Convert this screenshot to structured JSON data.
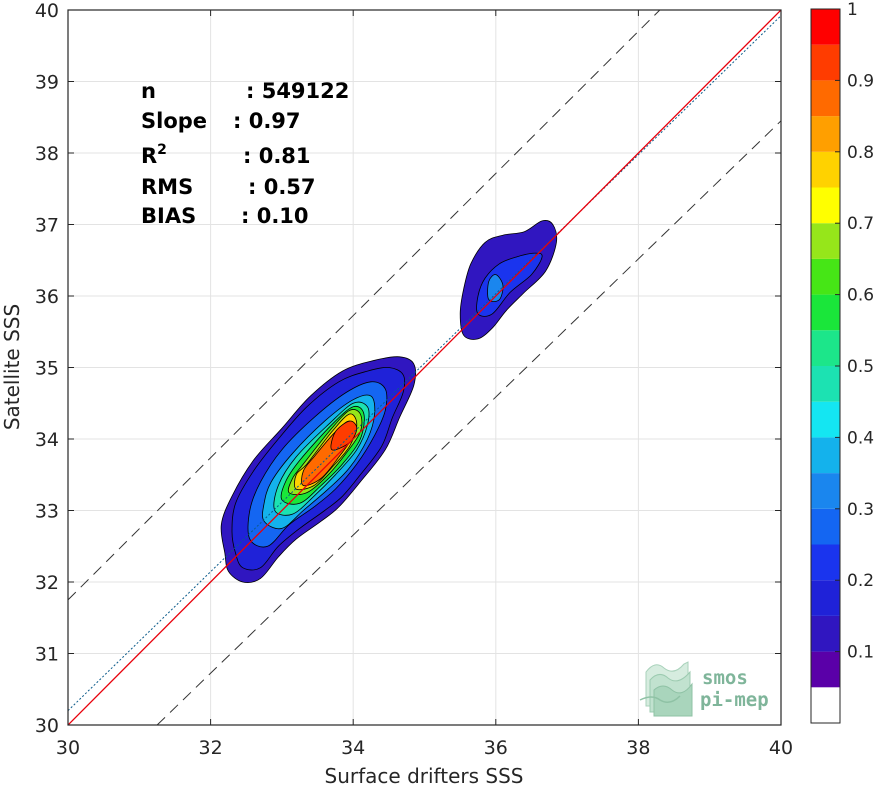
{
  "chart_data": {
    "type": "contour",
    "xlabel": "Surface drifters SSS",
    "ylabel": "Satellite SSS",
    "xlim": [
      30,
      40
    ],
    "ylim": [
      30,
      40
    ],
    "x_ticks": [
      30,
      32,
      34,
      36,
      38,
      40
    ],
    "y_ticks": [
      30,
      31,
      32,
      33,
      34,
      35,
      36,
      37,
      38,
      39,
      40
    ],
    "grid": true,
    "stats": [
      {
        "label": "n",
        "value": ": 549122"
      },
      {
        "label": "Slope",
        "value": ": 0.97"
      },
      {
        "label": "R",
        "sup": "2",
        "value": ": 0.81"
      },
      {
        "label": "RMS",
        "value": ": 0.57"
      },
      {
        "label": "BIAS",
        "value": ": 0.10"
      }
    ],
    "lines": {
      "identity": {
        "from": [
          30,
          30
        ],
        "to": [
          40,
          40
        ],
        "color": "#e8000b"
      },
      "regression": {
        "from": [
          30,
          30.2
        ],
        "to": [
          40,
          39.92
        ],
        "color": "#0a5a8a"
      },
      "upper_bound": {
        "from": [
          30,
          31.75
        ],
        "to": [
          38.3,
          40
        ],
        "color": "#333333"
      },
      "lower_bound": {
        "from": [
          31.25,
          30
        ],
        "to": [
          40,
          38.45
        ],
        "color": "#333333"
      }
    },
    "colorbar": {
      "ticks": [
        "0.1",
        "0.2",
        "0.3",
        "0.4",
        "0.5",
        "0.6",
        "0.7",
        "0.8",
        "0.9",
        "1"
      ],
      "levels": [
        0,
        0.05,
        0.1,
        0.15,
        0.2,
        0.25,
        0.3,
        0.35,
        0.4,
        0.45,
        0.5,
        0.55,
        0.6,
        0.65,
        0.7,
        0.75,
        0.8,
        0.85,
        0.9,
        0.95,
        1.0
      ],
      "colors": [
        "#ffffff",
        "#5a00a8",
        "#3016c0",
        "#1f22d8",
        "#1a34ee",
        "#1466f2",
        "#1a86ee",
        "#14b2ec",
        "#14e6f2",
        "#1ce2b2",
        "#1ce68a",
        "#1ae63a",
        "#46e616",
        "#96e61a",
        "#ffff00",
        "#ffd200",
        "#ff9f00",
        "#ff6a00",
        "#ff3c00",
        "#ff0000",
        "#d20000",
        "#8c0000"
      ]
    },
    "clusters": [
      {
        "name": "main",
        "levels": [
          {
            "value": 0.05,
            "points": [
              [
                32.2,
                32.4
              ],
              [
                32.25,
                32.15
              ],
              [
                32.45,
                32.0
              ],
              [
                32.7,
                32.05
              ],
              [
                32.95,
                32.35
              ],
              [
                33.2,
                32.6
              ],
              [
                33.55,
                32.85
              ],
              [
                33.8,
                33.05
              ],
              [
                34.1,
                33.4
              ],
              [
                34.45,
                33.85
              ],
              [
                34.65,
                34.3
              ],
              [
                34.85,
                34.75
              ],
              [
                34.85,
                35.05
              ],
              [
                34.65,
                35.15
              ],
              [
                34.3,
                35.1
              ],
              [
                33.85,
                34.95
              ],
              [
                33.4,
                34.6
              ],
              [
                33.0,
                34.15
              ],
              [
                32.6,
                33.7
              ],
              [
                32.3,
                33.2
              ],
              [
                32.15,
                32.8
              ]
            ]
          },
          {
            "value": 0.1,
            "points": [
              [
                32.35,
                32.4
              ],
              [
                32.45,
                32.2
              ],
              [
                32.7,
                32.2
              ],
              [
                32.95,
                32.5
              ],
              [
                33.25,
                32.75
              ],
              [
                33.6,
                33.0
              ],
              [
                33.85,
                33.2
              ],
              [
                34.1,
                33.5
              ],
              [
                34.4,
                33.9
              ],
              [
                34.55,
                34.3
              ],
              [
                34.7,
                34.65
              ],
              [
                34.7,
                34.9
              ],
              [
                34.5,
                35.0
              ],
              [
                34.2,
                34.95
              ],
              [
                33.8,
                34.8
              ],
              [
                33.35,
                34.45
              ],
              [
                32.95,
                34.0
              ],
              [
                32.6,
                33.55
              ],
              [
                32.35,
                33.1
              ],
              [
                32.3,
                32.7
              ]
            ]
          },
          {
            "value": 0.2,
            "points": [
              [
                32.55,
                32.6
              ],
              [
                32.8,
                32.5
              ],
              [
                33.1,
                32.8
              ],
              [
                33.45,
                33.05
              ],
              [
                33.75,
                33.3
              ],
              [
                34.05,
                33.65
              ],
              [
                34.3,
                34.05
              ],
              [
                34.45,
                34.4
              ],
              [
                34.45,
                34.7
              ],
              [
                34.25,
                34.8
              ],
              [
                33.9,
                34.65
              ],
              [
                33.45,
                34.3
              ],
              [
                33.0,
                33.85
              ],
              [
                32.7,
                33.4
              ],
              [
                32.55,
                33.0
              ]
            ]
          },
          {
            "value": 0.3,
            "points": [
              [
                32.75,
                32.85
              ],
              [
                33.0,
                32.75
              ],
              [
                33.3,
                33.0
              ],
              [
                33.65,
                33.3
              ],
              [
                33.95,
                33.6
              ],
              [
                34.2,
                34.0
              ],
              [
                34.3,
                34.35
              ],
              [
                34.25,
                34.6
              ],
              [
                34.0,
                34.55
              ],
              [
                33.6,
                34.25
              ],
              [
                33.15,
                33.8
              ],
              [
                32.85,
                33.4
              ],
              [
                32.75,
                33.1
              ]
            ]
          },
          {
            "value": 0.4,
            "points": [
              [
                32.9,
                33.0
              ],
              [
                33.15,
                32.95
              ],
              [
                33.45,
                33.2
              ],
              [
                33.75,
                33.5
              ],
              [
                34.05,
                33.85
              ],
              [
                34.2,
                34.2
              ],
              [
                34.2,
                34.45
              ],
              [
                34.0,
                34.5
              ],
              [
                33.65,
                34.2
              ],
              [
                33.2,
                33.75
              ],
              [
                32.95,
                33.35
              ]
            ]
          },
          {
            "value": 0.5,
            "points": [
              [
                33.0,
                33.15
              ],
              [
                33.25,
                33.1
              ],
              [
                33.55,
                33.35
              ],
              [
                33.85,
                33.65
              ],
              [
                34.1,
                34.0
              ],
              [
                34.15,
                34.35
              ],
              [
                34.0,
                34.45
              ],
              [
                33.7,
                34.2
              ],
              [
                33.25,
                33.7
              ],
              [
                33.05,
                33.4
              ]
            ]
          },
          {
            "value": 0.6,
            "points": [
              [
                33.1,
                33.25
              ],
              [
                33.35,
                33.25
              ],
              [
                33.65,
                33.5
              ],
              [
                33.9,
                33.8
              ],
              [
                34.1,
                34.1
              ],
              [
                34.1,
                34.35
              ],
              [
                33.95,
                34.4
              ],
              [
                33.7,
                34.15
              ],
              [
                33.3,
                33.65
              ],
              [
                33.15,
                33.45
              ]
            ]
          },
          {
            "value": 0.7,
            "points": [
              [
                33.2,
                33.3
              ],
              [
                33.45,
                33.35
              ],
              [
                33.7,
                33.6
              ],
              [
                33.95,
                33.9
              ],
              [
                34.05,
                34.2
              ],
              [
                33.95,
                34.35
              ],
              [
                33.7,
                34.1
              ],
              [
                33.35,
                33.65
              ],
              [
                33.2,
                33.5
              ]
            ]
          },
          {
            "value": 0.8,
            "points": [
              [
                33.3,
                33.35
              ],
              [
                33.55,
                33.45
              ],
              [
                33.8,
                33.75
              ],
              [
                34.0,
                34.05
              ],
              [
                33.95,
                34.25
              ],
              [
                33.75,
                34.1
              ],
              [
                33.45,
                33.75
              ],
              [
                33.3,
                33.55
              ]
            ]
          },
          {
            "value": 0.85,
            "points": [
              [
                33.7,
                33.85
              ],
              [
                33.95,
                33.95
              ],
              [
                34.05,
                34.15
              ],
              [
                33.95,
                34.25
              ],
              [
                33.75,
                34.1
              ]
            ]
          }
        ]
      },
      {
        "name": "secondary",
        "levels": [
          {
            "value": 0.05,
            "points": [
              [
                35.55,
                35.45
              ],
              [
                35.75,
                35.4
              ],
              [
                35.95,
                35.55
              ],
              [
                36.15,
                35.8
              ],
              [
                36.4,
                36.05
              ],
              [
                36.7,
                36.35
              ],
              [
                36.85,
                36.75
              ],
              [
                36.8,
                37.0
              ],
              [
                36.65,
                37.05
              ],
              [
                36.4,
                36.9
              ],
              [
                36.1,
                36.85
              ],
              [
                35.85,
                36.75
              ],
              [
                35.65,
                36.45
              ],
              [
                35.55,
                36.1
              ],
              [
                35.5,
                35.75
              ]
            ]
          },
          {
            "value": 0.15,
            "points": [
              [
                35.75,
                35.75
              ],
              [
                35.95,
                35.75
              ],
              [
                36.2,
                36.05
              ],
              [
                36.5,
                36.3
              ],
              [
                36.65,
                36.55
              ],
              [
                36.55,
                36.6
              ],
              [
                36.3,
                36.55
              ],
              [
                36.05,
                36.45
              ],
              [
                35.85,
                36.25
              ],
              [
                35.75,
                36.0
              ]
            ]
          },
          {
            "value": 0.25,
            "points": [
              [
                35.9,
                35.95
              ],
              [
                36.05,
                35.95
              ],
              [
                36.1,
                36.15
              ],
              [
                36.0,
                36.3
              ],
              [
                35.9,
                36.2
              ]
            ]
          }
        ]
      }
    ]
  },
  "watermark": {
    "line1": "smos",
    "line2": "pi-mep"
  }
}
